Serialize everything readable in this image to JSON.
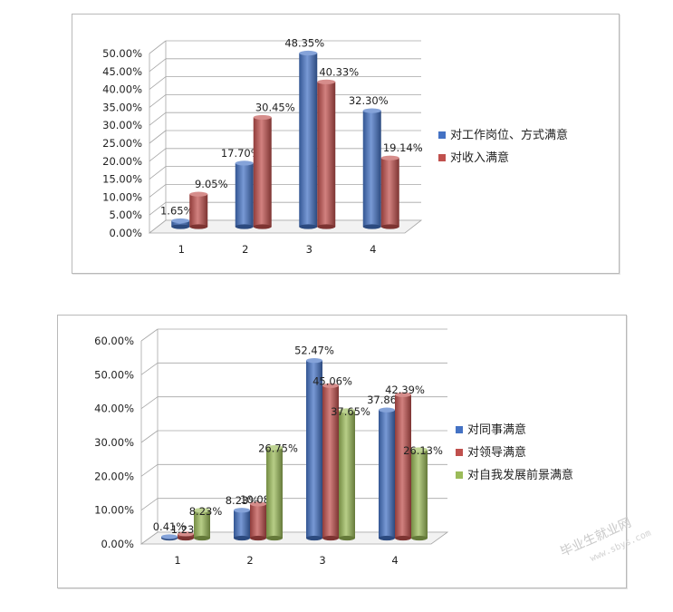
{
  "chart_data": [
    {
      "type": "bar",
      "categories": [
        "1",
        "2",
        "3",
        "4"
      ],
      "series": [
        {
          "name": "对工作岗位、方式满意",
          "color": "#4472c4",
          "values": [
            1.65,
            17.7,
            48.35,
            32.3
          ]
        },
        {
          "name": "对收入满意",
          "color": "#c0504d",
          "values": [
            9.05,
            30.45,
            40.33,
            19.14
          ]
        }
      ],
      "data_labels": [
        [
          "1.65%",
          "17.70%",
          "48.35%",
          "32.30%"
        ],
        [
          "9.05%",
          "30.45%",
          "40.33%",
          "19.14%"
        ]
      ],
      "yticks": [
        "0.00%",
        "5.00%",
        "10.00%",
        "15.00%",
        "20.00%",
        "25.00%",
        "30.00%",
        "35.00%",
        "40.00%",
        "45.00%",
        "50.00%"
      ],
      "ylim": [
        0,
        50
      ],
      "grid": true,
      "legend_position": "right",
      "three_d": true
    },
    {
      "type": "bar",
      "categories": [
        "1",
        "2",
        "3",
        "4"
      ],
      "series": [
        {
          "name": "对同事满意",
          "color": "#4472c4",
          "values": [
            0.41,
            8.23,
            52.47,
            37.86
          ]
        },
        {
          "name": "对领导满意",
          "color": "#c0504d",
          "values": [
            1.23,
            10.08,
            45.06,
            42.39
          ]
        },
        {
          "name": "对自我发展前景满意",
          "color": "#9bbb59",
          "values": [
            8.23,
            26.75,
            37.65,
            26.13
          ]
        }
      ],
      "data_labels": [
        [
          "0.41%",
          "8.23%",
          "52.47%",
          "37.86%"
        ],
        [
          "1.23%",
          "10.08%",
          "45.06%",
          "42.39%"
        ],
        [
          "8.23%",
          "26.75%",
          "37.65%",
          "26.13%"
        ]
      ],
      "yticks": [
        "0.00%",
        "10.00%",
        "20.00%",
        "30.00%",
        "40.00%",
        "50.00%",
        "60.00%"
      ],
      "ylim": [
        0,
        60
      ],
      "grid": true,
      "legend_position": "right",
      "three_d": true
    }
  ],
  "watermark": {
    "text": "毕业生就业网",
    "url": "www.sbys.com"
  }
}
